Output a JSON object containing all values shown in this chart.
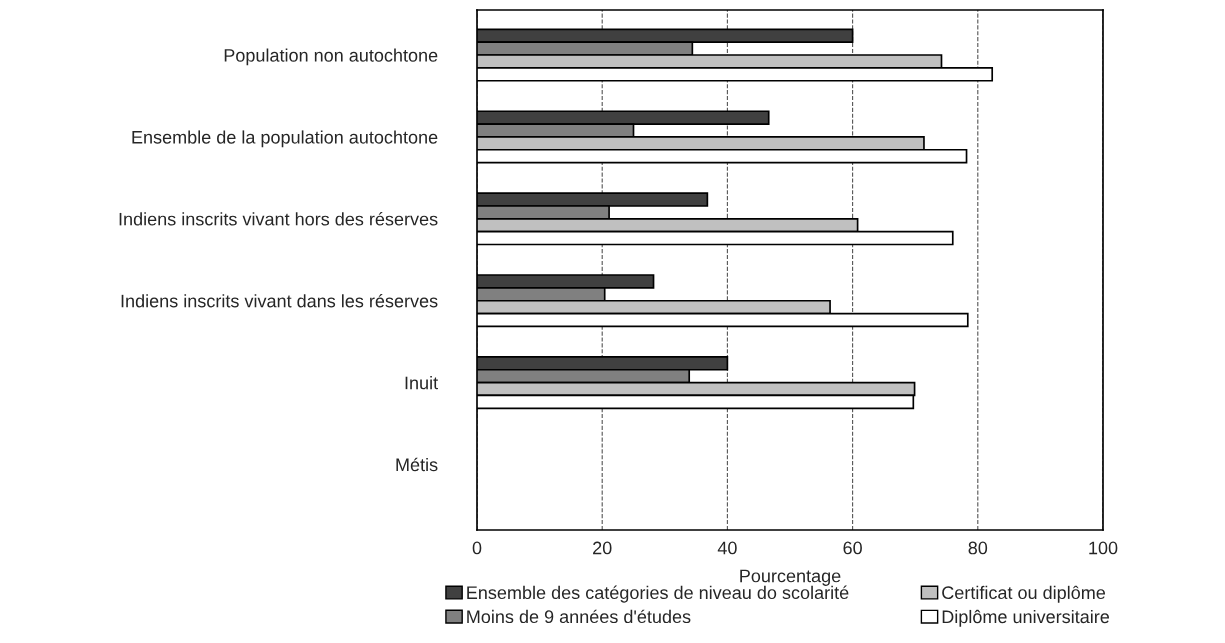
{
  "chart_data": {
    "type": "bar",
    "orientation": "horizontal",
    "xlabel": "Pourcentage",
    "categories": [
      "Population non autochtone",
      "Ensemble de la population autochtone",
      "Indiens inscrits vivant hors des réserves",
      "Indiens inscrits vivant dans les réserves",
      "Inuit",
      "Métis"
    ],
    "series": [
      {
        "name": "Ensemble des catégories de niveau do scolarité",
        "color": "#404040",
        "values": [
          60.0,
          46.6,
          36.8,
          28.2,
          40.0,
          null
        ]
      },
      {
        "name": "Moins de 9 années d'études",
        "color": "#808080",
        "values": [
          34.4,
          25.0,
          21.1,
          20.4,
          33.9,
          null
        ]
      },
      {
        "name": "Certificat ou diplôme",
        "color": "#c0c0c0",
        "values": [
          74.2,
          71.4,
          60.8,
          56.4,
          69.9,
          null
        ]
      },
      {
        "name": "Diplôme universitaire",
        "color": "#ffffff",
        "values": [
          82.3,
          78.2,
          76.0,
          78.4,
          69.7,
          null
        ]
      }
    ],
    "xlim": [
      0,
      100
    ],
    "xticks": [
      0,
      20,
      40,
      60,
      80,
      100
    ],
    "grid": "x",
    "legend": "bottom"
  }
}
